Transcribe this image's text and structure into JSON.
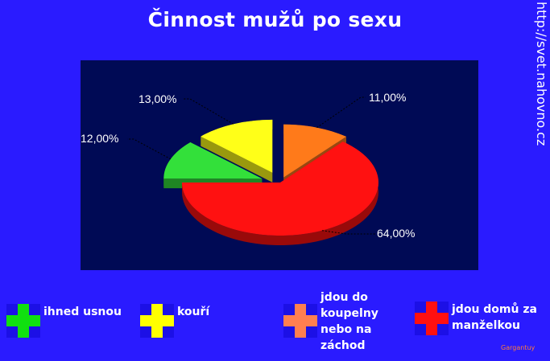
{
  "chart_data": {
    "type": "pie",
    "title": "Činnost mužů po sexu",
    "slices": [
      {
        "label": "jdou do koupelny nebo na záchod",
        "value": 11,
        "value_label": "11,00%",
        "color": "#ff7a1a"
      },
      {
        "label": "jdou domů za manželkou",
        "value": 64,
        "value_label": "64,00%",
        "color": "#ff1111"
      },
      {
        "label": "ihned usnou",
        "value": 12,
        "value_label": "12,00%",
        "color": "#33e03a"
      },
      {
        "label": "kouří",
        "value": 13,
        "value_label": "13,00%",
        "color": "#ffff18"
      }
    ],
    "legend_placement": "bottom",
    "grid": false
  },
  "watermark": "http://svet.nahovno.cz",
  "legend": [
    {
      "label": "ihned usnou",
      "color": "#10e010"
    },
    {
      "label": "kouří",
      "color": "#ffff00"
    },
    {
      "label": "jdou do\nkoupelny\nnebo na\nzáchod",
      "color": "#ff7f50"
    },
    {
      "label": "jdou domů za\nmanželkou",
      "color": "#ff1010"
    }
  ],
  "credit": "Gargantuy"
}
